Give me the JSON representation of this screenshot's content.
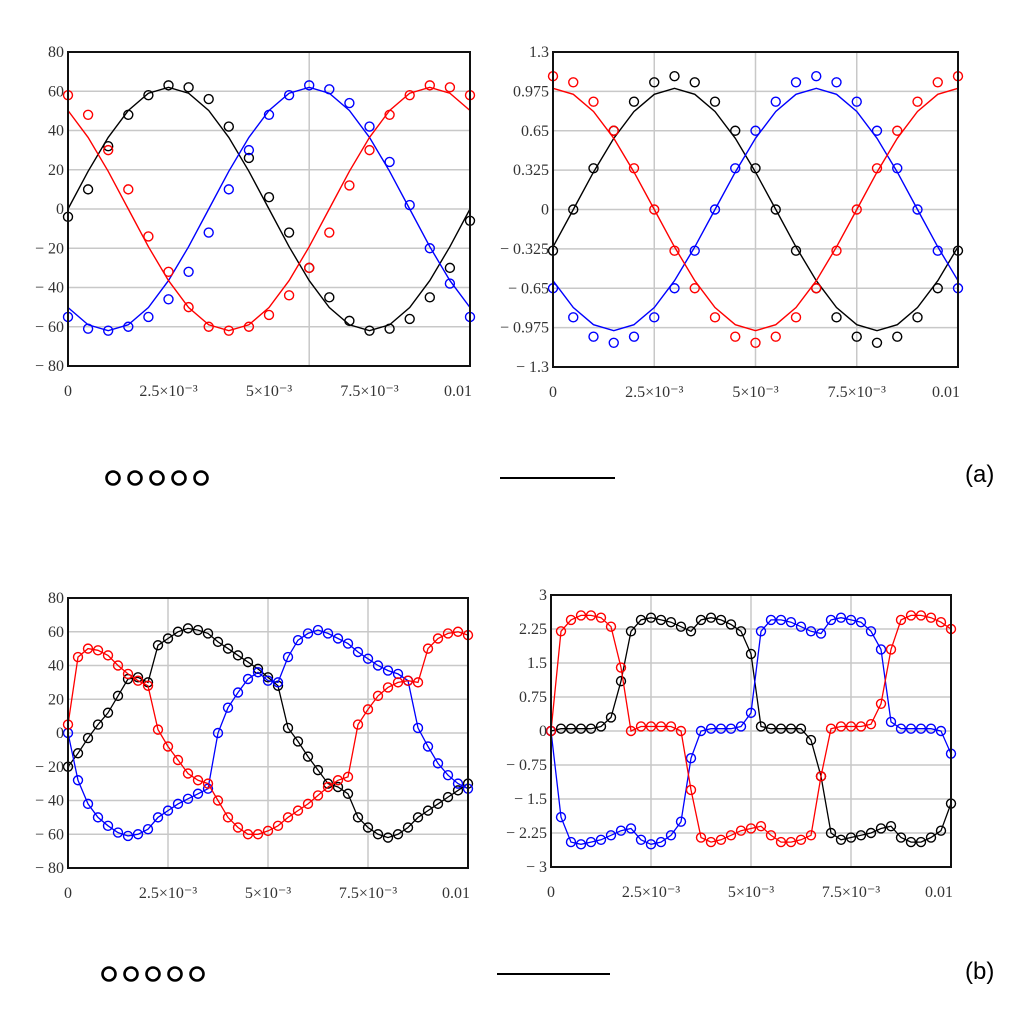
{
  "panel_labels": {
    "a": "(a)",
    "b": "(b)"
  },
  "legend": {
    "marker_symbol": "circle",
    "line_symbol": "line",
    "marker_count": 5
  },
  "colors": {
    "black": "#000000",
    "blue": "#0000ff",
    "red": "#ff0000"
  },
  "chart_data": [
    {
      "type": "line",
      "panel": "a-left",
      "xlim": [
        0,
        0.01
      ],
      "ylim": [
        -80,
        80
      ],
      "x_tick_values": [
        0,
        0.0025,
        0.005,
        0.0075,
        0.01
      ],
      "x_tick_labels": [
        "0",
        "2.5×10⁻³",
        "5×10⁻³",
        "7.5×10⁻³",
        "0.01"
      ],
      "y_tick_values": [
        80,
        60,
        40,
        20,
        0,
        -20,
        -40,
        -60,
        -80
      ],
      "y_tick_labels": [
        "80",
        "60",
        "40",
        "20",
        "0",
        "− 20",
        "− 40",
        "− 60",
        "− 80"
      ],
      "x_gridlines": [
        0.006
      ],
      "y_gridlines": [
        60,
        40,
        20,
        0,
        -20,
        -40,
        -60
      ],
      "x": [
        0,
        0.0005,
        0.001,
        0.0015,
        0.002,
        0.0025,
        0.003,
        0.0035,
        0.004,
        0.0045,
        0.005,
        0.0055,
        0.006,
        0.0065,
        0.007,
        0.0075,
        0.008,
        0.0085,
        0.009,
        0.0095,
        0.01
      ],
      "series": [
        {
          "color": "black",
          "line": [
            0,
            19.2,
            36.5,
            50.2,
            59.0,
            62,
            59.0,
            50.2,
            36.5,
            19.2,
            0,
            -19.2,
            -36.5,
            -50.2,
            -59.0,
            -62,
            -59.0,
            -50.2,
            -36.5,
            -19.2,
            0
          ],
          "markers": [
            -4,
            10,
            32,
            48,
            58,
            63,
            62,
            56,
            42,
            26,
            6,
            -12,
            -30,
            -45,
            -57,
            -62,
            -61,
            -56,
            -45,
            -30,
            -6
          ]
        },
        {
          "color": "blue",
          "line": [
            -50.2,
            -59.0,
            -62,
            -59.0,
            -50.2,
            -36.5,
            -19.2,
            0,
            19.2,
            36.5,
            50.2,
            59.0,
            62,
            59.0,
            50.2,
            36.5,
            19.2,
            0,
            -19.2,
            -36.5,
            -50.2
          ],
          "markers": [
            -55,
            -61,
            -62,
            -60,
            -55,
            -46,
            -32,
            -12,
            10,
            30,
            48,
            58,
            63,
            61,
            54,
            42,
            24,
            2,
            -20,
            -38,
            -55
          ]
        },
        {
          "color": "red",
          "line": [
            50.2,
            36.5,
            19.2,
            0,
            -19.2,
            -36.5,
            -50.2,
            -59.0,
            -62,
            -59.0,
            -50.2,
            -36.5,
            -19.2,
            0,
            19.2,
            36.5,
            50.2,
            59.0,
            62,
            59.0,
            50.2
          ],
          "markers": [
            58,
            48,
            30,
            10,
            -14,
            -32,
            -50,
            -60,
            -62,
            -60,
            -54,
            -44,
            -30,
            -12,
            12,
            30,
            48,
            58,
            63,
            62,
            58
          ]
        }
      ]
    },
    {
      "type": "line",
      "panel": "a-right",
      "xlim": [
        0,
        0.01
      ],
      "ylim": [
        -1.3,
        1.3
      ],
      "x_tick_values": [
        0,
        0.0025,
        0.005,
        0.0075,
        0.01
      ],
      "x_tick_labels": [
        "0",
        "2.5×10⁻³",
        "5×10⁻³",
        "7.5×10⁻³",
        "0.01"
      ],
      "y_tick_values": [
        1.3,
        0.975,
        0.65,
        0.325,
        0,
        -0.325,
        -0.65,
        -0.975,
        -1.3
      ],
      "y_tick_labels": [
        "1.3",
        "0.975",
        "0.65",
        "0.325",
        "0",
        "− 0.325",
        "− 0.65",
        "− 0.975",
        "− 1.3"
      ],
      "x_gridlines": [
        0.0025,
        0.005,
        0.0075
      ],
      "y_gridlines": [
        0.975,
        0.65,
        0.325,
        0,
        -0.325,
        -0.65,
        -0.975
      ],
      "x": [
        0,
        0.0005,
        0.001,
        0.0015,
        0.002,
        0.0025,
        0.003,
        0.0035,
        0.004,
        0.0045,
        0.005,
        0.0055,
        0.006,
        0.0065,
        0.007,
        0.0075,
        0.008,
        0.0085,
        0.009,
        0.0095,
        0.01
      ],
      "series": [
        {
          "color": "black",
          "line": [
            -0.309,
            0,
            0.309,
            0.588,
            0.809,
            0.951,
            1,
            0.951,
            0.809,
            0.588,
            0.309,
            0,
            -0.309,
            -0.588,
            -0.809,
            -0.951,
            -1,
            -0.951,
            -0.809,
            -0.588,
            -0.309
          ],
          "markers": [
            -0.34,
            0,
            0.34,
            0.65,
            0.89,
            1.05,
            1.1,
            1.05,
            0.89,
            0.65,
            0.34,
            0,
            -0.34,
            -0.65,
            -0.89,
            -1.05,
            -1.1,
            -1.05,
            -0.89,
            -0.65,
            -0.34
          ]
        },
        {
          "color": "blue",
          "line": [
            -0.588,
            -0.809,
            -0.951,
            -1,
            -0.951,
            -0.809,
            -0.588,
            -0.309,
            0,
            0.309,
            0.588,
            0.809,
            0.951,
            1,
            0.951,
            0.809,
            0.588,
            0.309,
            0,
            -0.309,
            -0.588
          ],
          "markers": [
            -0.65,
            -0.89,
            -1.05,
            -1.1,
            -1.05,
            -0.89,
            -0.65,
            -0.34,
            0,
            0.34,
            0.65,
            0.89,
            1.05,
            1.1,
            1.05,
            0.89,
            0.65,
            0.34,
            0,
            -0.34,
            -0.65
          ]
        },
        {
          "color": "red",
          "line": [
            1,
            0.951,
            0.809,
            0.588,
            0.309,
            0,
            -0.309,
            -0.588,
            -0.809,
            -0.951,
            -1,
            -0.951,
            -0.809,
            -0.588,
            -0.309,
            0,
            0.309,
            0.588,
            0.809,
            0.951,
            1
          ],
          "markers": [
            1.1,
            1.05,
            0.89,
            0.65,
            0.34,
            0,
            -0.34,
            -0.65,
            -0.89,
            -1.05,
            -1.1,
            -1.05,
            -0.89,
            -0.65,
            -0.34,
            0,
            0.34,
            0.65,
            0.89,
            1.05,
            1.1
          ]
        }
      ]
    },
    {
      "type": "line",
      "panel": "b-left",
      "xlim": [
        0,
        0.01
      ],
      "ylim": [
        -80,
        80
      ],
      "x_tick_values": [
        0,
        0.0025,
        0.005,
        0.0075,
        0.01
      ],
      "x_tick_labels": [
        "0",
        "2.5×10⁻³",
        "5×10⁻³",
        "7.5×10⁻³",
        "0.01"
      ],
      "y_tick_values": [
        80,
        60,
        40,
        20,
        0,
        -20,
        -40,
        -60,
        -80
      ],
      "y_tick_labels": [
        "80",
        "60",
        "40",
        "20",
        "0",
        "− 20",
        "− 40",
        "− 60",
        "− 80"
      ],
      "x_gridlines": [
        0.0025,
        0.005,
        0.0075
      ],
      "y_gridlines": [
        60,
        40,
        20,
        0,
        -20,
        -40,
        -60
      ],
      "x": [
        0,
        0.00025,
        0.0005,
        0.00075,
        0.001,
        0.00125,
        0.0015,
        0.00175,
        0.002,
        0.00225,
        0.0025,
        0.00275,
        0.003,
        0.00325,
        0.0035,
        0.00375,
        0.004,
        0.00425,
        0.0045,
        0.00475,
        0.005,
        0.00525,
        0.0055,
        0.00575,
        0.006,
        0.00625,
        0.0065,
        0.00675,
        0.007,
        0.00725,
        0.0075,
        0.00775,
        0.008,
        0.00825,
        0.0085,
        0.00875,
        0.009,
        0.00925,
        0.0095,
        0.00975,
        0.01
      ],
      "series": [
        {
          "color": "black",
          "line": [
            -20,
            -12,
            -3,
            5,
            12,
            22,
            32,
            33,
            30,
            52,
            56,
            60,
            62,
            61,
            59,
            54,
            50,
            46,
            42,
            38,
            33,
            28,
            3,
            -5,
            -14,
            -22,
            -30,
            -32,
            -36,
            -50,
            -56,
            -60,
            -62,
            -60,
            -56,
            -50,
            -46,
            -42,
            -38,
            -34,
            -30
          ]
        },
        {
          "color": "blue",
          "line": [
            0,
            -28,
            -42,
            -50,
            -55,
            -59,
            -61,
            -60,
            -57,
            -50,
            -46,
            -42,
            -39,
            -36,
            -33,
            0,
            15,
            24,
            32,
            36,
            31,
            30,
            45,
            55,
            59,
            61,
            59,
            56,
            53,
            48,
            44,
            40,
            37,
            35,
            31,
            3,
            -8,
            -18,
            -25,
            -30,
            -33
          ]
        },
        {
          "color": "red",
          "line": [
            5,
            45,
            50,
            49,
            46,
            40,
            35,
            31,
            28,
            2,
            -8,
            -16,
            -24,
            -28,
            -30,
            -40,
            -50,
            -56,
            -60,
            -60,
            -58,
            -55,
            -50,
            -46,
            -42,
            -37,
            -32,
            -28,
            -26,
            5,
            14,
            22,
            27,
            30,
            31,
            30,
            50,
            56,
            59,
            60,
            58
          ]
        }
      ]
    },
    {
      "type": "line",
      "panel": "b-right",
      "xlim": [
        0,
        0.01
      ],
      "ylim": [
        -3,
        3
      ],
      "x_tick_values": [
        0,
        0.0025,
        0.005,
        0.0075,
        0.01
      ],
      "x_tick_labels": [
        "0",
        "2.5×10⁻³",
        "5×10⁻³",
        "7.5×10⁻³",
        "0.01"
      ],
      "y_tick_values": [
        3,
        2.25,
        1.5,
        0.75,
        0,
        -0.75,
        -1.5,
        -2.25,
        -3
      ],
      "y_tick_labels": [
        "3",
        "2.25",
        "1.5",
        "0.75",
        "0",
        "− 0.75",
        "− 1.5",
        "− 2.25",
        "− 3"
      ],
      "x_gridlines": [
        0.0025,
        0.005,
        0.0075
      ],
      "y_gridlines": [
        2.25,
        1.5,
        0.75,
        0,
        -0.75,
        -1.5,
        -2.25
      ],
      "x": [
        0,
        0.00025,
        0.0005,
        0.00075,
        0.001,
        0.00125,
        0.0015,
        0.00175,
        0.002,
        0.00225,
        0.0025,
        0.00275,
        0.003,
        0.00325,
        0.0035,
        0.00375,
        0.004,
        0.00425,
        0.0045,
        0.00475,
        0.005,
        0.00525,
        0.0055,
        0.00575,
        0.006,
        0.00625,
        0.0065,
        0.00675,
        0.007,
        0.00725,
        0.0075,
        0.00775,
        0.008,
        0.00825,
        0.0085,
        0.00875,
        0.009,
        0.00925,
        0.0095,
        0.00975,
        0.01
      ],
      "series": [
        {
          "color": "black",
          "line": [
            0,
            0.05,
            0.05,
            0.05,
            0.05,
            0.1,
            0.3,
            1.1,
            2.2,
            2.45,
            2.5,
            2.45,
            2.4,
            2.3,
            2.2,
            2.45,
            2.5,
            2.45,
            2.35,
            2.2,
            1.7,
            0.1,
            0.05,
            0.05,
            0.05,
            0.05,
            -0.2,
            -1.0,
            -2.25,
            -2.4,
            -2.35,
            -2.3,
            -2.25,
            -2.15,
            -2.1,
            -2.35,
            -2.45,
            -2.45,
            -2.35,
            -2.2,
            -1.6
          ]
        },
        {
          "color": "blue",
          "line": [
            0,
            -1.9,
            -2.45,
            -2.5,
            -2.45,
            -2.4,
            -2.3,
            -2.2,
            -2.15,
            -2.4,
            -2.5,
            -2.45,
            -2.3,
            -2.0,
            -0.6,
            0,
            0.05,
            0.05,
            0.05,
            0.1,
            0.4,
            2.2,
            2.45,
            2.45,
            2.4,
            2.3,
            2.2,
            2.15,
            2.45,
            2.5,
            2.45,
            2.4,
            2.2,
            1.8,
            0.2,
            0.05,
            0.05,
            0.05,
            0.05,
            0,
            -0.5
          ]
        },
        {
          "color": "red",
          "line": [
            0,
            2.2,
            2.45,
            2.55,
            2.55,
            2.5,
            2.3,
            1.4,
            0,
            0.1,
            0.1,
            0.1,
            0.1,
            0,
            -1.3,
            -2.35,
            -2.45,
            -2.4,
            -2.3,
            -2.2,
            -2.15,
            -2.1,
            -2.3,
            -2.45,
            -2.45,
            -2.4,
            -2.3,
            -1.0,
            0.05,
            0.1,
            0.1,
            0.1,
            0.15,
            0.6,
            1.8,
            2.45,
            2.55,
            2.55,
            2.5,
            2.4,
            2.25
          ]
        }
      ]
    }
  ]
}
